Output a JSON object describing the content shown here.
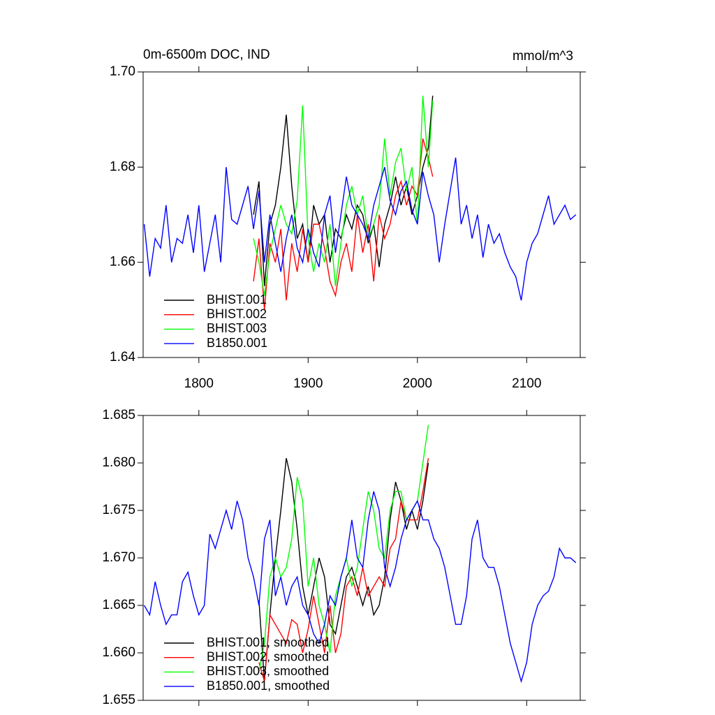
{
  "chart_data": [
    {
      "type": "line",
      "title": "0m-6500m DOC, IND",
      "units": "mmol/m^3",
      "xlim": [
        1749,
        2149
      ],
      "xticks": [
        1800,
        1900,
        2000,
        2100
      ],
      "xtick_labels": true,
      "ylim": [
        1.64,
        1.7
      ],
      "yticks": [
        1.64,
        1.66,
        1.68,
        {
          "value": 1.7,
          "label": "1.70"
        }
      ],
      "legend": "lower left",
      "series": [
        {
          "name": "BHIST.001",
          "color": "#000000",
          "x": [
            1850,
            1855,
            1860,
            1865,
            1870,
            1875,
            1880,
            1885,
            1890,
            1895,
            1900,
            1905,
            1910,
            1915,
            1920,
            1925,
            1930,
            1935,
            1940,
            1945,
            1950,
            1955,
            1960,
            1965,
            1970,
            1975,
            1980,
            1985,
            1990,
            1995,
            2000,
            2005,
            2010,
            2014
          ],
          "values": [
            1.67,
            1.677,
            1.655,
            1.668,
            1.672,
            1.68,
            1.691,
            1.676,
            1.665,
            1.668,
            1.66,
            1.672,
            1.668,
            1.67,
            1.66,
            1.667,
            1.665,
            1.67,
            1.667,
            1.672,
            1.67,
            1.664,
            1.668,
            1.659,
            1.668,
            1.672,
            1.678,
            1.672,
            1.676,
            1.67,
            1.674,
            1.68,
            1.684,
            1.695
          ]
        },
        {
          "name": "BHIST.002",
          "color": "#ff0000",
          "x": [
            1850,
            1855,
            1860,
            1865,
            1870,
            1875,
            1880,
            1885,
            1890,
            1895,
            1900,
            1905,
            1910,
            1915,
            1920,
            1925,
            1930,
            1935,
            1940,
            1945,
            1950,
            1955,
            1960,
            1965,
            1970,
            1975,
            1980,
            1985,
            1990,
            1995,
            2000,
            2005,
            2010,
            2014
          ],
          "values": [
            1.656,
            1.665,
            1.65,
            1.664,
            1.66,
            1.667,
            1.652,
            1.664,
            1.658,
            1.667,
            1.66,
            1.668,
            1.668,
            1.663,
            1.656,
            1.653,
            1.66,
            1.664,
            1.658,
            1.67,
            1.662,
            1.668,
            1.656,
            1.67,
            1.665,
            1.668,
            1.674,
            1.677,
            1.672,
            1.676,
            1.674,
            1.686,
            1.682,
            1.678
          ]
        },
        {
          "name": "BHIST.003",
          "color": "#00ff00",
          "x": [
            1850,
            1855,
            1860,
            1865,
            1870,
            1875,
            1880,
            1885,
            1890,
            1895,
            1900,
            1905,
            1910,
            1915,
            1920,
            1925,
            1930,
            1935,
            1940,
            1945,
            1950,
            1955,
            1960,
            1965,
            1970,
            1975,
            1980,
            1985,
            1990,
            1995,
            2000,
            2005,
            2010,
            2014
          ],
          "values": [
            1.665,
            1.66,
            1.653,
            1.662,
            1.667,
            1.672,
            1.668,
            1.666,
            1.673,
            1.693,
            1.665,
            1.658,
            1.664,
            1.66,
            1.668,
            1.655,
            1.664,
            1.672,
            1.676,
            1.67,
            1.674,
            1.665,
            1.668,
            1.672,
            1.686,
            1.674,
            1.681,
            1.684,
            1.675,
            1.68,
            1.668,
            1.695,
            1.68,
            1.694
          ]
        },
        {
          "name": "B1850.001",
          "color": "#0000ff",
          "x": [
            1750,
            1755,
            1760,
            1765,
            1770,
            1775,
            1780,
            1785,
            1790,
            1795,
            1800,
            1805,
            1810,
            1815,
            1820,
            1825,
            1830,
            1835,
            1840,
            1845,
            1850,
            1855,
            1860,
            1865,
            1870,
            1875,
            1880,
            1885,
            1890,
            1895,
            1900,
            1905,
            1910,
            1915,
            1920,
            1925,
            1930,
            1935,
            1940,
            1945,
            1950,
            1955,
            1960,
            1965,
            1970,
            1975,
            1980,
            1985,
            1990,
            1995,
            2000,
            2005,
            2010,
            2015,
            2020,
            2025,
            2030,
            2035,
            2040,
            2045,
            2050,
            2055,
            2060,
            2065,
            2070,
            2075,
            2080,
            2085,
            2090,
            2095,
            2100,
            2105,
            2110,
            2115,
            2120,
            2125,
            2130,
            2135,
            2140,
            2145
          ],
          "values": [
            1.668,
            1.657,
            1.665,
            1.663,
            1.672,
            1.66,
            1.665,
            1.664,
            1.67,
            1.662,
            1.672,
            1.658,
            1.664,
            1.67,
            1.66,
            1.68,
            1.669,
            1.668,
            1.672,
            1.676,
            1.667,
            1.675,
            1.66,
            1.67,
            1.664,
            1.658,
            1.665,
            1.67,
            1.663,
            1.66,
            1.667,
            1.662,
            1.659,
            1.67,
            1.674,
            1.662,
            1.67,
            1.678,
            1.672,
            1.67,
            1.668,
            1.665,
            1.672,
            1.676,
            1.68,
            1.673,
            1.67,
            1.675,
            1.677,
            1.671,
            1.668,
            1.679,
            1.674,
            1.67,
            1.66,
            1.668,
            1.675,
            1.682,
            1.668,
            1.672,
            1.665,
            1.67,
            1.661,
            1.668,
            1.664,
            1.666,
            1.662,
            1.659,
            1.657,
            1.652,
            1.66,
            1.664,
            1.666,
            1.67,
            1.674,
            1.668,
            1.67,
            1.672,
            1.669,
            1.67
          ]
        }
      ]
    },
    {
      "type": "line",
      "xlim": [
        1749,
        2149
      ],
      "xticks": [
        1800,
        1900,
        2000,
        2100
      ],
      "xtick_labels": false,
      "ylim": [
        1.655,
        1.685
      ],
      "yticks": [
        1.655,
        {
          "value": 1.66,
          "label": "1.660"
        },
        1.665,
        {
          "value": 1.67,
          "label": "1.670"
        },
        1.675,
        {
          "value": 1.68,
          "label": "1.680"
        },
        1.685
      ],
      "legend": "lower left",
      "series": [
        {
          "name": "BHIST.001, smoothed",
          "color": "#000000",
          "x": [
            1855,
            1860,
            1865,
            1870,
            1875,
            1880,
            1885,
            1890,
            1895,
            1900,
            1905,
            1910,
            1915,
            1920,
            1925,
            1930,
            1935,
            1940,
            1945,
            1950,
            1955,
            1960,
            1965,
            1970,
            1975,
            1980,
            1985,
            1990,
            1995,
            2000,
            2005,
            2010
          ],
          "values": [
            1.6655,
            1.657,
            1.664,
            1.67,
            1.675,
            1.6805,
            1.678,
            1.673,
            1.667,
            1.664,
            1.667,
            1.67,
            1.668,
            1.663,
            1.662,
            1.665,
            1.668,
            1.669,
            1.667,
            1.665,
            1.667,
            1.664,
            1.665,
            1.668,
            1.674,
            1.678,
            1.676,
            1.673,
            1.675,
            1.673,
            1.676,
            1.68
          ]
        },
        {
          "name": "BHIST.002, smoothed",
          "color": "#ff0000",
          "x": [
            1855,
            1860,
            1865,
            1870,
            1875,
            1880,
            1885,
            1890,
            1895,
            1900,
            1905,
            1910,
            1915,
            1920,
            1925,
            1930,
            1935,
            1940,
            1945,
            1950,
            1955,
            1960,
            1965,
            1970,
            1975,
            1980,
            1985,
            1990,
            1995,
            2000,
            2005,
            2010
          ],
          "values": [
            1.659,
            1.657,
            1.664,
            1.663,
            1.662,
            1.661,
            1.6635,
            1.663,
            1.66,
            1.6625,
            1.666,
            1.663,
            1.66,
            1.665,
            1.66,
            1.662,
            1.667,
            1.668,
            1.666,
            1.669,
            1.666,
            1.667,
            1.668,
            1.667,
            1.671,
            1.672,
            1.676,
            1.674,
            1.674,
            1.674,
            1.677,
            1.6805
          ]
        },
        {
          "name": "BHIST.003, smoothed",
          "color": "#00ff00",
          "x": [
            1855,
            1860,
            1865,
            1870,
            1875,
            1880,
            1885,
            1890,
            1895,
            1900,
            1905,
            1910,
            1915,
            1920,
            1925,
            1930,
            1935,
            1940,
            1945,
            1950,
            1955,
            1960,
            1965,
            1970,
            1975,
            1980,
            1985,
            1990,
            1995,
            2000,
            2005,
            2010
          ],
          "values": [
            1.658,
            1.661,
            1.668,
            1.67,
            1.668,
            1.669,
            1.672,
            1.6785,
            1.676,
            1.667,
            1.67,
            1.665,
            1.663,
            1.66,
            1.666,
            1.668,
            1.67,
            1.667,
            1.669,
            1.673,
            1.677,
            1.675,
            1.671,
            1.67,
            1.675,
            1.677,
            1.677,
            1.674,
            1.675,
            1.676,
            1.68,
            1.684
          ]
        },
        {
          "name": "B1850.001, smoothed",
          "color": "#0000ff",
          "x": [
            1750,
            1755,
            1760,
            1765,
            1770,
            1775,
            1780,
            1785,
            1790,
            1795,
            1800,
            1805,
            1810,
            1815,
            1820,
            1825,
            1830,
            1835,
            1840,
            1845,
            1850,
            1855,
            1860,
            1865,
            1870,
            1875,
            1880,
            1885,
            1890,
            1895,
            1900,
            1905,
            1910,
            1915,
            1920,
            1925,
            1930,
            1935,
            1940,
            1945,
            1950,
            1955,
            1960,
            1965,
            1970,
            1975,
            1980,
            1985,
            1990,
            1995,
            2000,
            2005,
            2010,
            2015,
            2020,
            2025,
            2030,
            2035,
            2040,
            2045,
            2050,
            2055,
            2060,
            2065,
            2070,
            2075,
            2080,
            2085,
            2090,
            2095,
            2100,
            2105,
            2110,
            2115,
            2120,
            2125,
            2130,
            2135,
            2140,
            2145
          ],
          "values": [
            1.665,
            1.664,
            1.6675,
            1.665,
            1.663,
            1.664,
            1.664,
            1.6675,
            1.6685,
            1.666,
            1.664,
            1.665,
            1.6725,
            1.671,
            1.673,
            1.675,
            1.673,
            1.676,
            1.674,
            1.67,
            1.668,
            1.665,
            1.672,
            1.674,
            1.666,
            1.668,
            1.665,
            1.667,
            1.668,
            1.665,
            1.664,
            1.662,
            1.661,
            1.663,
            1.666,
            1.665,
            1.668,
            1.67,
            1.674,
            1.67,
            1.669,
            1.674,
            1.677,
            1.675,
            1.669,
            1.667,
            1.669,
            1.672,
            1.674,
            1.675,
            1.676,
            1.674,
            1.674,
            1.672,
            1.671,
            1.669,
            1.666,
            1.663,
            1.663,
            1.666,
            1.672,
            1.674,
            1.67,
            1.669,
            1.669,
            1.667,
            1.664,
            1.661,
            1.659,
            1.657,
            1.659,
            1.663,
            1.665,
            1.666,
            1.6665,
            1.668,
            1.671,
            1.67,
            1.67,
            1.6695
          ]
        }
      ]
    }
  ]
}
